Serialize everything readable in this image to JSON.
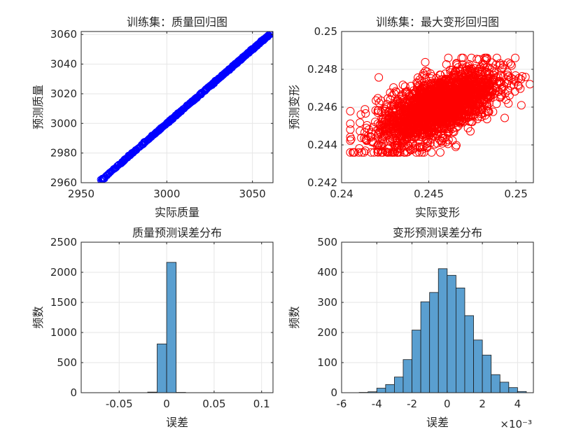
{
  "chart_data": [
    {
      "type": "scatter",
      "title": "训练集：质量回归图",
      "xlabel": "实际质量",
      "ylabel": "预测质量",
      "xlim": [
        2950,
        3062
      ],
      "ylim": [
        2960,
        3062
      ],
      "xticks": [
        2950,
        3000,
        3050
      ],
      "yticks": [
        2960,
        2980,
        3000,
        3020,
        3040,
        3060
      ],
      "xtick_labels": [
        "2950",
        "3000",
        "3050"
      ],
      "ytick_labels": [
        "2960",
        "2980",
        "3000",
        "3020",
        "3040",
        "3060"
      ],
      "grid": true,
      "marker": "circle-open",
      "color": "#0000ff",
      "points_description": "dense points along y = x from about 2961 to 3061",
      "range": [
        2961,
        3061
      ]
    },
    {
      "type": "scatter",
      "title": "训练集：最大变形回归图",
      "xlabel": "实际变形",
      "ylabel": "预测变形",
      "xlim": [
        0.24,
        0.251
      ],
      "ylim": [
        0.242,
        0.25
      ],
      "xticks": [
        0.24,
        0.245,
        0.25
      ],
      "yticks": [
        0.242,
        0.244,
        0.246,
        0.248,
        0.25
      ],
      "xtick_labels": [
        "0.24",
        "0.245",
        "0.25"
      ],
      "ytick_labels": [
        "0.242",
        "0.244",
        "0.246",
        "0.248",
        "0.25"
      ],
      "grid": true,
      "marker": "circle-open",
      "color": "#ff0000",
      "cluster_description": "dense cloud with x from about 0.2405 to 0.2508 and y from about 0.2436 to 0.2486, rising trend",
      "x_range": [
        0.2405,
        0.2508
      ],
      "y_range": [
        0.2436,
        0.2486
      ]
    },
    {
      "type": "bar",
      "subtype": "histogram",
      "title": "质量预测误差分布",
      "xlabel": "误差",
      "ylabel": "频数",
      "xlim": [
        -0.09,
        0.112
      ],
      "ylim": [
        0,
        2500
      ],
      "xticks": [
        -0.05,
        0,
        0.05,
        0.1
      ],
      "yticks": [
        0,
        500,
        1000,
        1500,
        2000,
        2500
      ],
      "xtick_labels": [
        "-0.05",
        "0",
        "0.05",
        "0.1"
      ],
      "ytick_labels": [
        "0",
        "500",
        "1000",
        "1500",
        "2000",
        "2500"
      ],
      "grid": true,
      "color": "#5a9fd0",
      "bin_edges": [
        -0.03,
        -0.02,
        -0.01,
        0,
        0.01,
        0.02
      ],
      "counts": [
        1,
        10,
        810,
        2165,
        5
      ]
    },
    {
      "type": "bar",
      "subtype": "histogram",
      "title": "变形预测误差分布",
      "xlabel": "误差",
      "ylabel": "频数",
      "xlim": [
        -0.006,
        0.0049
      ],
      "ylim": [
        0,
        500
      ],
      "xticks": [
        -0.006,
        -0.004,
        -0.002,
        0,
        0.002,
        0.004
      ],
      "yticks": [
        0,
        100,
        200,
        300,
        400,
        500
      ],
      "xtick_labels": [
        "-6",
        "-4",
        "-2",
        "0",
        "2",
        "4"
      ],
      "ytick_labels": [
        "0",
        "100",
        "200",
        "300",
        "400",
        "500"
      ],
      "x_exponent_label": "×10⁻³",
      "grid": true,
      "color": "#5a9fd0",
      "bin_edges": [
        -0.005,
        -0.0045,
        -0.004,
        -0.0035,
        -0.003,
        -0.0025,
        -0.002,
        -0.0015,
        -0.001,
        -0.0005,
        0,
        0.0005,
        0.001,
        0.0015,
        0.002,
        0.0025,
        0.003,
        0.0035,
        0.004,
        0.0045
      ],
      "counts": [
        1,
        3,
        15,
        27,
        52,
        110,
        208,
        302,
        333,
        412,
        390,
        348,
        256,
        175,
        125,
        60,
        35,
        17,
        4
      ]
    }
  ]
}
